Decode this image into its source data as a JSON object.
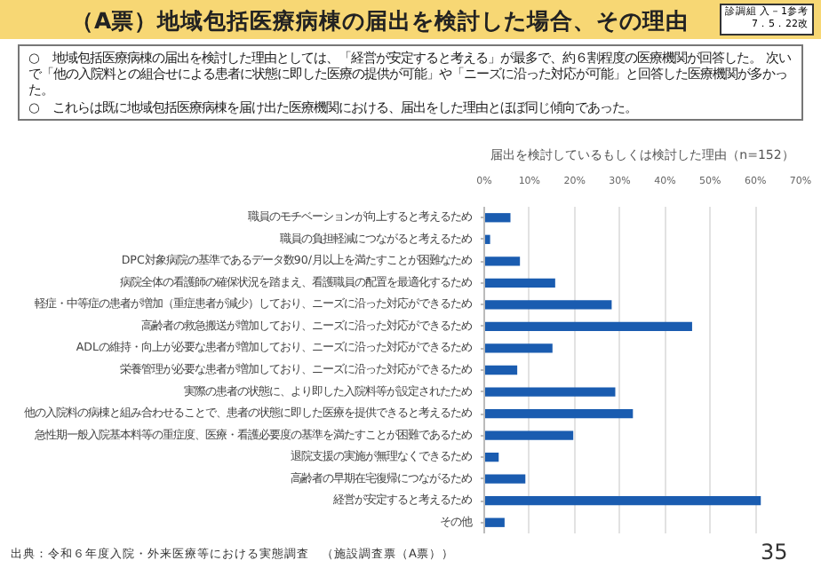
{
  "chart_data": {
    "type": "bar",
    "orientation": "horizontal",
    "title": "（A票）地域包括医療病棟の届出を検討した場合、その理由",
    "subtitle": "届出を検討しているもしくは検討した理由（n=152）",
    "annotations": [
      "診調組 入－1参考",
      "7．5．22改",
      "○　地域包括医療病棟の届出を検討した理由としては、「経営が安定すると考える」が最多で、約６割程度の医療機関が回答した。 次いで「他の入院料との組合せによる患者に状態に即した医療の提供が可能」や「ニーズに沿った対応が可能」と回答した医療機関が多かった。",
      "○　これらは既に地域包括医療病棟を届け出た医療機関における、届出をした理由とほぼ同じ傾向であった。",
      "出典：令和６年度入院・外来医療等における実態調査　（施設調査票（A票））",
      "35"
    ],
    "categories": [
      "職員のモチベーションが向上すると考えるため",
      "職員の負担軽減につながると考えるため",
      "DPC対象病院の基準であるデータ数90/月以上を満たすことが困難なため",
      "病院全体の看護師の確保状況を踏まえ、看護職員の配置を最適化するため",
      "軽症・中等症の患者が増加（重症患者が減少）しており、ニーズに沿った対応ができるため",
      "高齢者の救急搬送が増加しており、ニーズに沿った対応ができるため",
      "ADLの維持・向上が必要な患者が増加しており、ニーズに沿った対応ができるため",
      "栄養管理が必要な患者が増加しており、ニーズに沿った対応ができるため",
      "実際の患者の状態に、より即した入院料等が設定されたため",
      "他の入院料の病棟と組み合わせることで、患者の状態に即した医療を提供できると考えるため",
      "急性期一般入院基本料等の重症度、医療・看護必要度の基準を満たすことが困難であるため",
      "退院支援の実施が無理なくできるため",
      "高齢者の早期在宅復帰につながるため",
      "経営が安定すると考えるため",
      "その他"
    ],
    "values": [
      5.8,
      1.3,
      7.9,
      15.7,
      28.2,
      46.0,
      15.1,
      7.3,
      29.0,
      32.9,
      19.7,
      3.2,
      9.1,
      61.2,
      4.5
    ],
    "color": "#1a5cb0",
    "xlim": [
      0,
      70
    ],
    "xticks": [
      {
        "value": 0,
        "label": "0%"
      },
      {
        "value": 10,
        "label": "10%"
      },
      {
        "value": 20,
        "label": "20%"
      },
      {
        "value": 30,
        "label": "30%"
      },
      {
        "value": 40,
        "label": "40%"
      },
      {
        "value": 50,
        "label": "50%"
      },
      {
        "value": 60,
        "label": "60%"
      },
      {
        "value": 70,
        "label": "70%"
      }
    ],
    "grid": "x"
  }
}
